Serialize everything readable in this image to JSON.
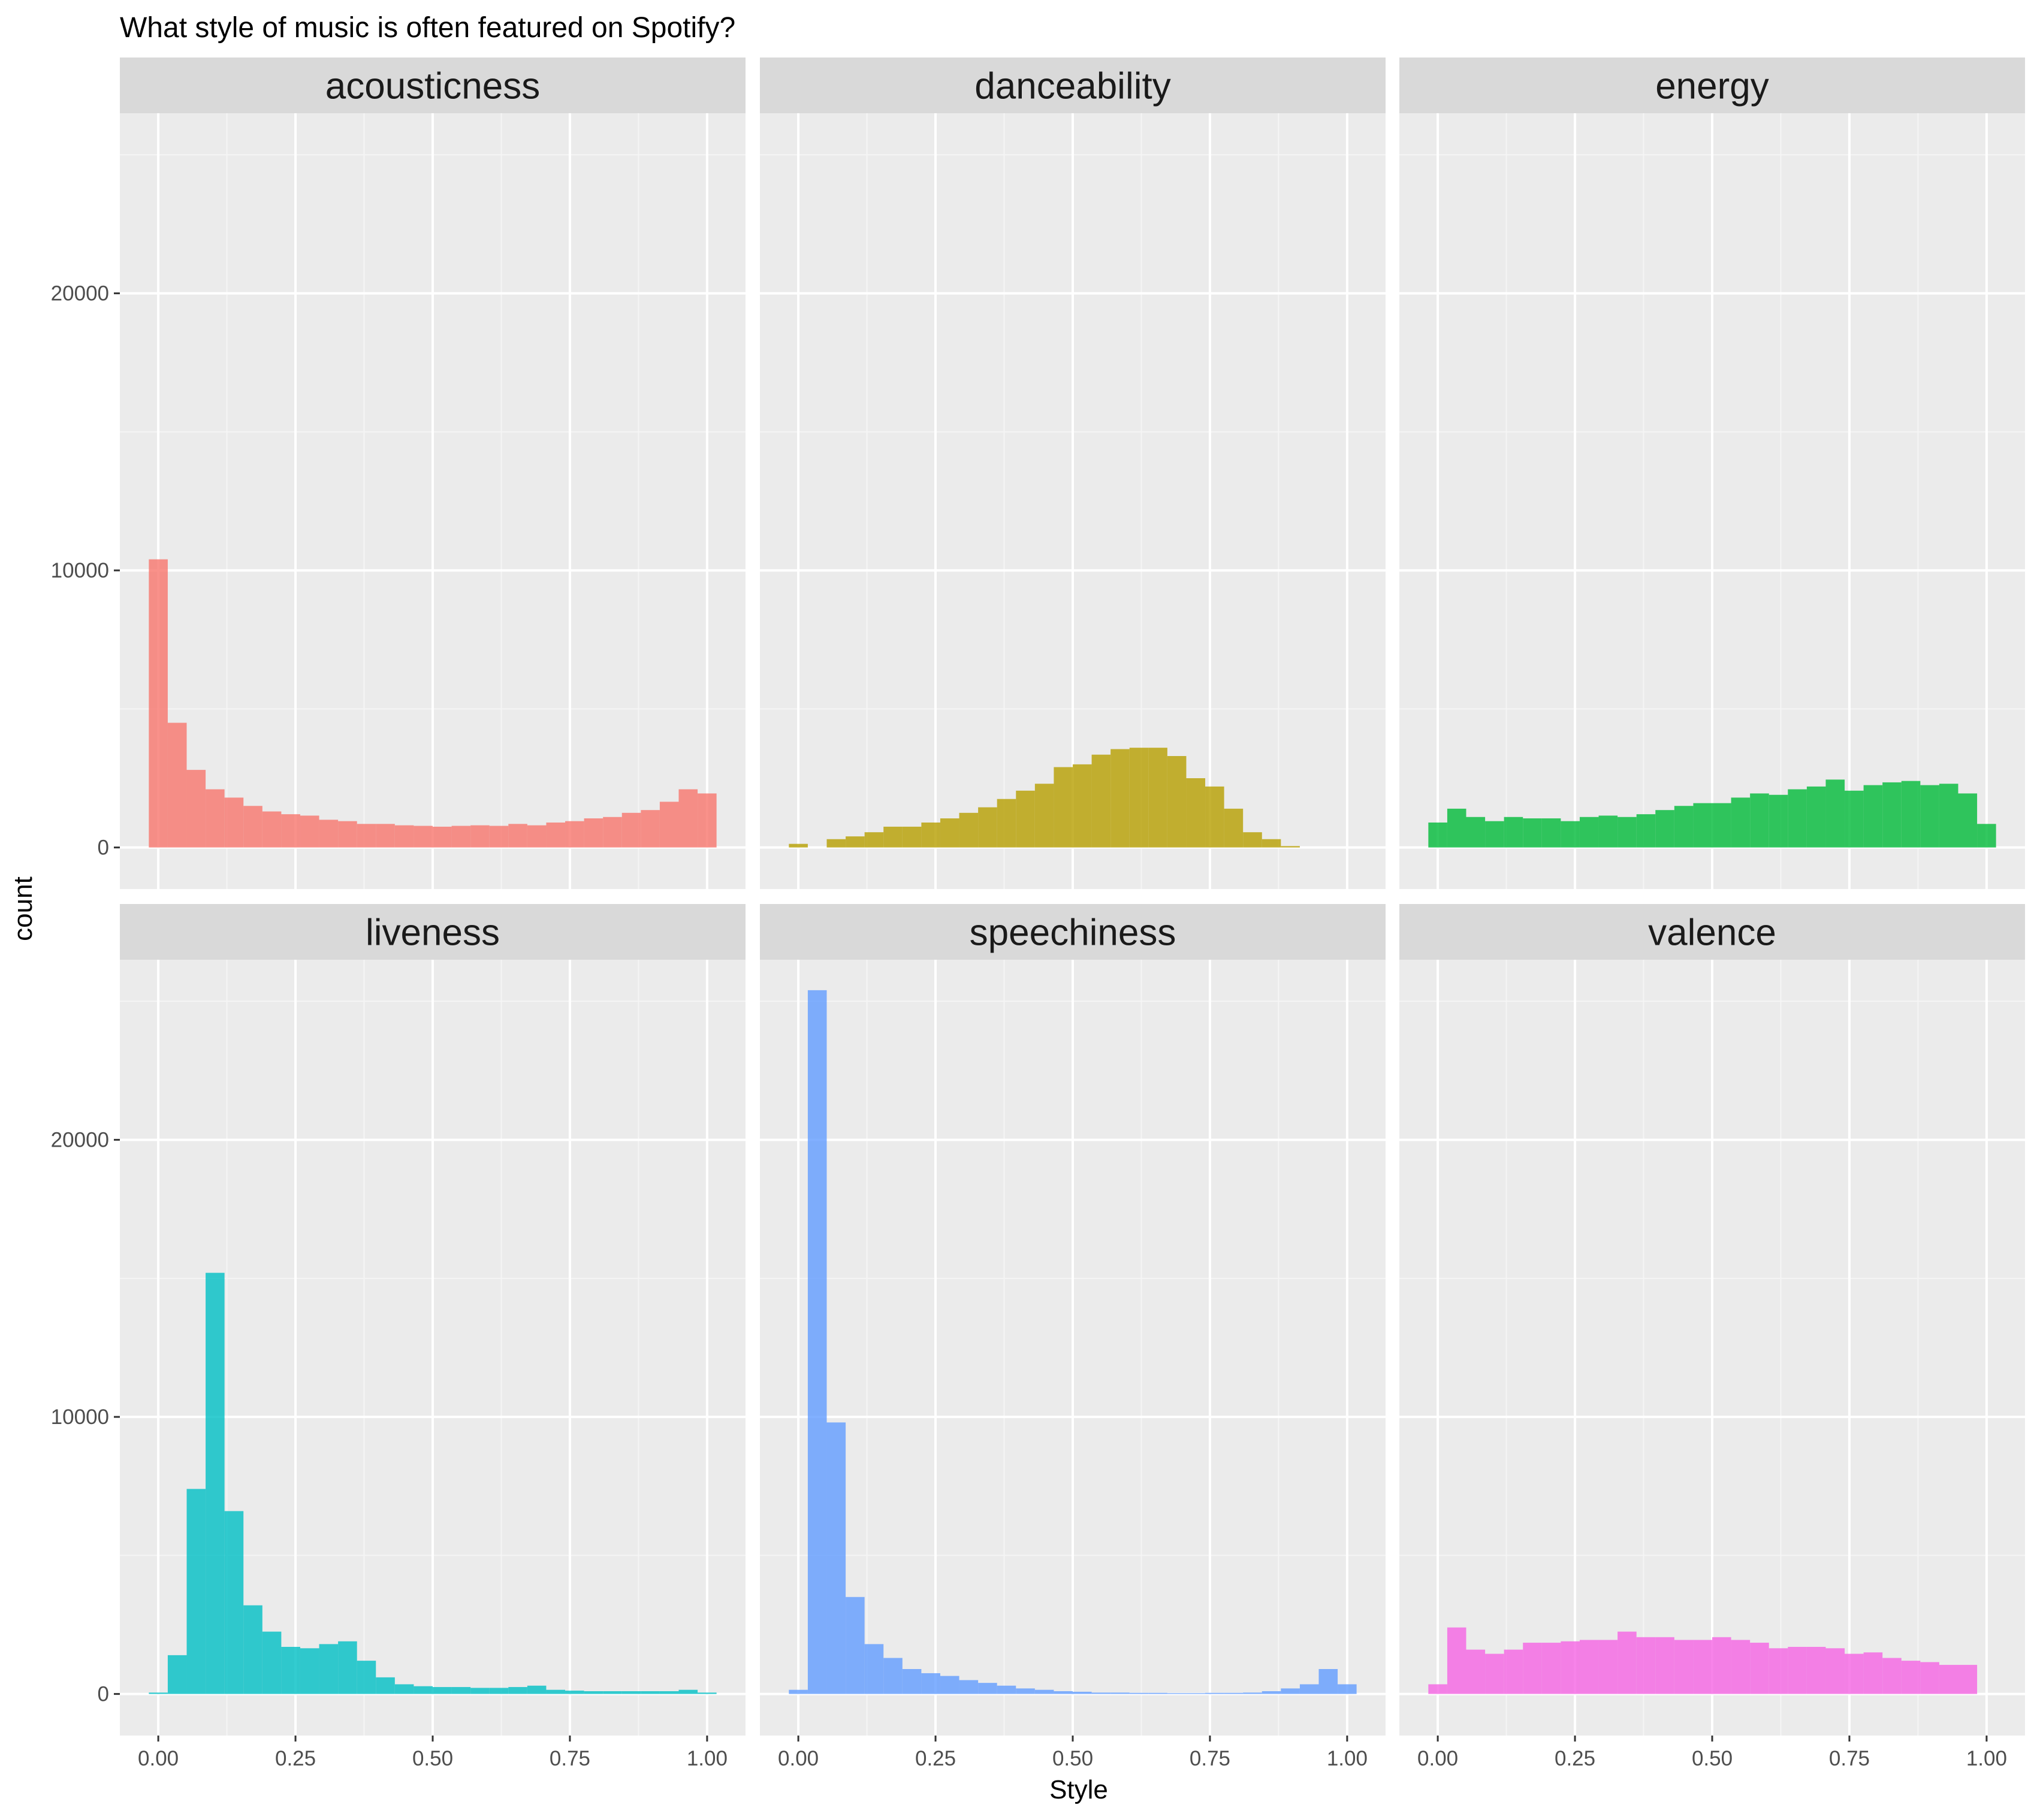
{
  "chart_data": {
    "type": "bar",
    "title": "What style of music is often featured on Spotify?",
    "xlabel": "Style",
    "ylabel": "count",
    "xlim": [
      -0.07,
      1.07
    ],
    "ylim": [
      -1500,
      26500
    ],
    "x_ticks": [
      0,
      0.25,
      0.5,
      0.75,
      1
    ],
    "x_tick_labels": [
      "0.00",
      "0.25",
      "0.50",
      "0.75",
      "1.00"
    ],
    "y_ticks": [
      0,
      10000,
      20000
    ],
    "y_tick_labels": [
      "0",
      "10000",
      "20000"
    ],
    "grid": true,
    "panel_background": "#ebebeb",
    "strip_background": "#d9d9d9",
    "bins": 30,
    "facets": [
      {
        "name": "acousticness",
        "color": "#F8766D",
        "x_start": -0.0172,
        "bin_width": 0.03448,
        "values": [
          10400,
          4500,
          2800,
          2100,
          1800,
          1500,
          1300,
          1200,
          1150,
          1000,
          950,
          850,
          850,
          800,
          780,
          750,
          780,
          800,
          780,
          850,
          800,
          900,
          950,
          1050,
          1100,
          1250,
          1350,
          1650,
          2100,
          1950
        ]
      },
      {
        "name": "danceability",
        "color": "#B79F00",
        "x_start": -0.0172,
        "bin_width": 0.03448,
        "values": [
          130,
          0,
          300,
          400,
          550,
          750,
          750,
          900,
          1050,
          1250,
          1450,
          1750,
          2050,
          2300,
          2900,
          3000,
          3350,
          3550,
          3600,
          3600,
          3300,
          2500,
          2200,
          1400,
          550,
          300,
          50,
          0,
          0,
          0
        ]
      },
      {
        "name": "energy",
        "color": "#00BA38",
        "x_start": -0.0172,
        "bin_width": 0.03448,
        "values": [
          900,
          1400,
          1100,
          950,
          1100,
          1050,
          1050,
          950,
          1100,
          1150,
          1100,
          1200,
          1350,
          1500,
          1600,
          1600,
          1800,
          1950,
          1900,
          2100,
          2200,
          2450,
          2050,
          2250,
          2350,
          2400,
          2250,
          2300,
          1950,
          850
        ]
      },
      {
        "name": "liveness",
        "color": "#00BFC4",
        "x_start": -0.0172,
        "bin_width": 0.03448,
        "values": [
          50,
          1400,
          7400,
          15200,
          6600,
          3200,
          2250,
          1700,
          1650,
          1800,
          1900,
          1200,
          600,
          350,
          280,
          250,
          250,
          220,
          220,
          250,
          300,
          150,
          120,
          100,
          100,
          100,
          100,
          100,
          150,
          50
        ]
      },
      {
        "name": "speechiness",
        "color": "#619CFF",
        "x_start": -0.0172,
        "bin_width": 0.03448,
        "values": [
          150,
          25400,
          9800,
          3500,
          1800,
          1300,
          900,
          750,
          650,
          500,
          400,
          300,
          200,
          150,
          100,
          80,
          50,
          50,
          40,
          40,
          30,
          30,
          40,
          40,
          50,
          100,
          200,
          350,
          900,
          350
        ]
      },
      {
        "name": "valence",
        "color": "#F564E3",
        "x_start": -0.0172,
        "bin_width": 0.03448,
        "values": [
          350,
          2400,
          1600,
          1450,
          1600,
          1850,
          1850,
          1900,
          1950,
          1950,
          2250,
          2050,
          2050,
          1950,
          1950,
          2050,
          1950,
          1850,
          1650,
          1700,
          1700,
          1650,
          1450,
          1500,
          1300,
          1200,
          1150,
          1050,
          1050,
          0
        ]
      }
    ]
  }
}
